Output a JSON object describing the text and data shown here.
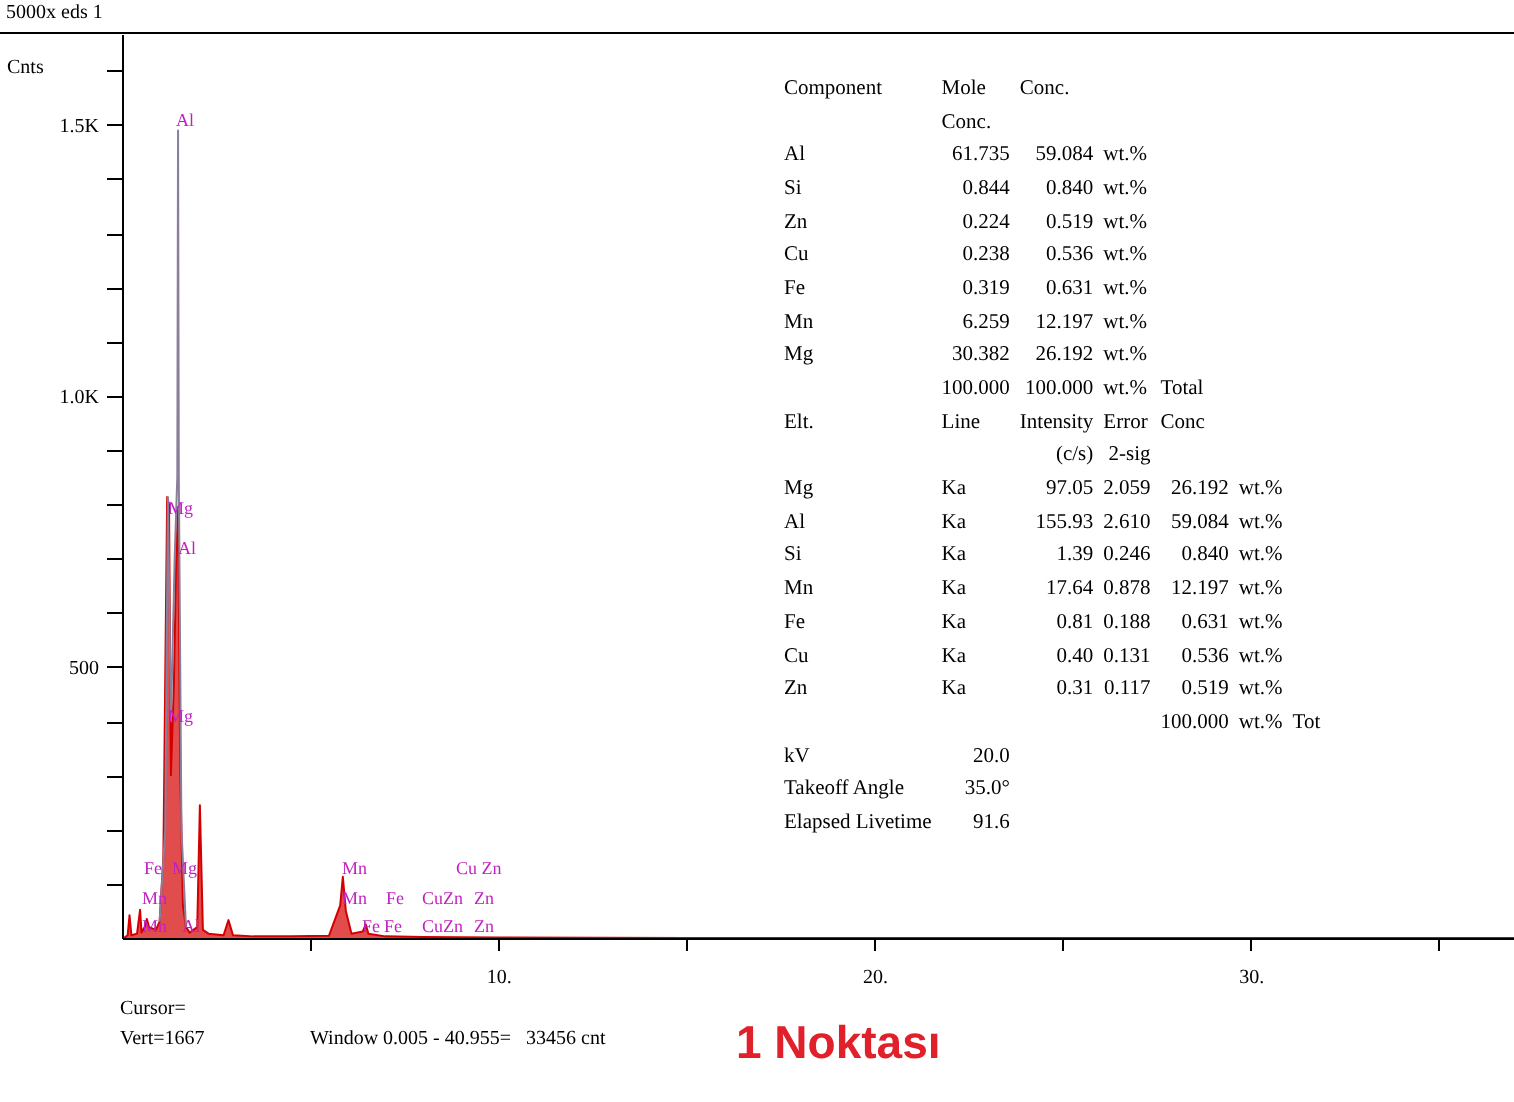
{
  "chart_data": {
    "type": "area",
    "title": "5000x eds 1",
    "subtitle": "1 Noktası",
    "ylabel": "Cnts",
    "xlim": [
      0,
      37
    ],
    "ylim": [
      0,
      1667
    ],
    "xticks": [
      {
        "value": 5,
        "label": null
      },
      {
        "value": 10,
        "label": "10."
      },
      {
        "value": 15,
        "label": null
      },
      {
        "value": 20,
        "label": "20."
      },
      {
        "value": 25,
        "label": null
      },
      {
        "value": 30,
        "label": "30."
      },
      {
        "value": 35,
        "label": null
      }
    ],
    "yticks": [
      {
        "value": 100,
        "label": null
      },
      {
        "value": 200,
        "label": null
      },
      {
        "value": 300,
        "label": null
      },
      {
        "value": 400,
        "label": null
      },
      500,
      {
        "value": 600,
        "label": null
      },
      {
        "value": 700,
        "label": null
      },
      {
        "value": 800,
        "label": null
      },
      {
        "value": 900,
        "label": null
      },
      {
        "value": 1000,
        "label": "1.0K"
      },
      {
        "value": 1100,
        "label": null
      },
      {
        "value": 1200,
        "label": null
      },
      {
        "value": 1300,
        "label": null
      },
      {
        "value": 1400,
        "label": null
      },
      {
        "value": 1500,
        "label": "1.5K"
      },
      {
        "value": 1600,
        "label": null
      }
    ],
    "series": [
      {
        "color": "#d40000",
        "x": [
          0.05,
          0.15,
          0.2,
          0.25,
          0.4,
          0.48,
          0.52,
          0.6,
          0.66,
          0.72,
          0.9,
          1.0,
          1.1,
          1.2,
          1.25,
          1.3,
          1.38,
          1.44,
          1.49,
          1.55,
          1.62,
          1.7,
          1.8,
          2.0,
          2.07,
          2.15,
          2.3,
          2.7,
          2.83,
          2.95,
          3.5,
          4.5,
          5.5,
          5.8,
          5.87,
          5.95,
          6.1,
          6.4,
          6.48,
          6.55,
          7.0,
          8.0,
          10,
          15,
          37
        ],
        "values": [
          0,
          5,
          42,
          5,
          8,
          52,
          10,
          20,
          35,
          20,
          15,
          30,
          150,
          813,
          800,
          300,
          470,
          700,
          795,
          300,
          60,
          20,
          10,
          20,
          245,
          15,
          8,
          5,
          33,
          5,
          3,
          3,
          4,
          60,
          113,
          50,
          8,
          12,
          25,
          8,
          3,
          2,
          1,
          0,
          0
        ]
      },
      {
        "type": "line",
        "color": "#8a7f9a",
        "x": [
          1.0,
          1.15,
          1.22,
          1.3,
          1.4,
          1.47,
          1.49,
          1.51,
          1.58,
          1.7
        ],
        "values": [
          30,
          200,
          813,
          400,
          700,
          850,
          1489,
          850,
          200,
          20
        ]
      }
    ],
    "annotations": [
      "Al",
      "Mg",
      "Al",
      "Mg",
      "Fe",
      "Mg",
      "Mn",
      "Mn",
      "Al",
      "Mn",
      "Cu Zn",
      "Mn",
      "Fe",
      "CuZn",
      "Zn",
      "Fe",
      "Fe",
      "CuZn",
      "Zn",
      "Component\tMole\tConc.",
      "\tConc.",
      "Al\t61.735\t59.084\twt.%",
      "Si\t0.844\t0.840\twt.%",
      "Zn\t0.224\t0.519\twt.%",
      "Cu\t0.238\t0.536\twt.%",
      "Fe\t0.319\t0.631\twt.%",
      "Mn\t6.259\t12.197\twt.%",
      "Mg\t30.382\t26.192\twt.%",
      "\t100.000\t100.000\twt.%\tTotal",
      "Elt.\tLine\tIntensity\tError\tConc",
      "\t\t(c/s)\t2-sig",
      "Mg\tKa\t97.05\t2.059\t26.192\twt.%",
      "Al\tKa\t155.93\t2.610\t59.084\twt.%",
      "Si\tKa\t1.39\t0.246\t0.840\twt.%",
      "Mn\tKa\t17.64\t0.878\t12.197\twt.%",
      "Fe\tKa\t0.81\t0.188\t0.631\twt.%",
      "Cu\tKa\t0.40\t0.131\t0.536\twt.%",
      "Zn\tKa\t0.31\t0.117\t0.519\twt.%",
      "\t\t\t\t100.000\twt.%\tTot",
      "kV\t20.0",
      "Takeoff Angle\t35.0°",
      "Elapsed Livetime\t91.6",
      "Cursor=",
      "Vert=1667",
      "Window 0.005 - 40.955=   33456 cnt"
    ]
  }
}
